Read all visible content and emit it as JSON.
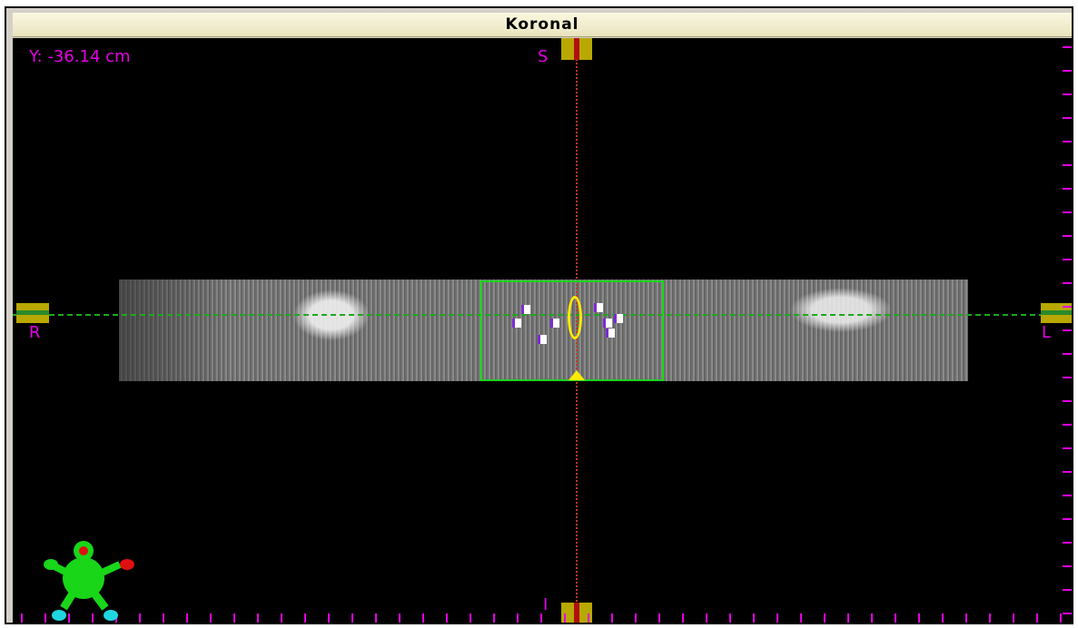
{
  "window": {
    "title": "Koronal"
  },
  "viewport": {
    "coordinate_readout": "Y: -36.14 cm",
    "orientation_labels": {
      "superior": "S",
      "right": "R",
      "left": "L",
      "inferior": "I"
    }
  },
  "colors": {
    "label": "#e600e6",
    "crosshair_vertical": "#c03a1a",
    "crosshair_horizontal": "#1fa81f",
    "roi_box": "#19d619",
    "contour": "#ffeb00",
    "marker": "#b8a800"
  },
  "icons": {
    "orientation_figure": "patient-orientation-figure-icon"
  }
}
